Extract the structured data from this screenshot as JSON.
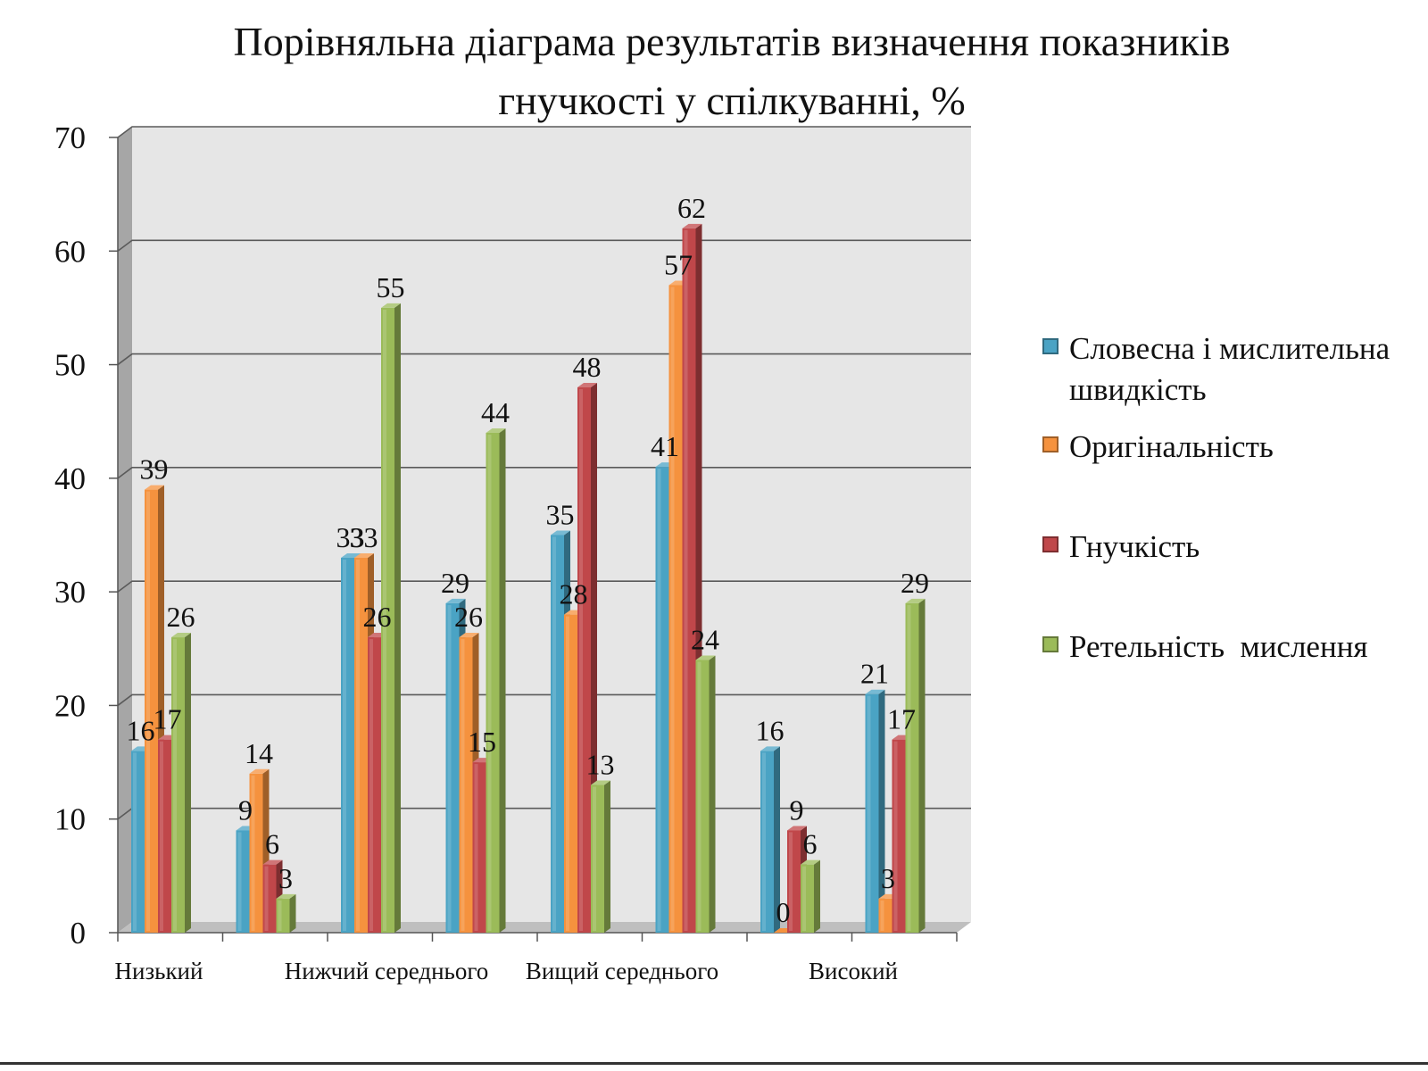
{
  "chart_data": {
    "type": "bar",
    "title": "Порівняльна діаграма результатів визначення показників\nгнучкості у спілкуванні, %",
    "xlabel": "",
    "ylabel": "",
    "ylim": [
      0,
      70
    ],
    "yticks": [
      0,
      10,
      20,
      30,
      40,
      50,
      60,
      70
    ],
    "grid": true,
    "legend_position": "right",
    "category_labels": [
      "Низький",
      "Нижчий середнього",
      "Вищий середнього",
      "Високий"
    ],
    "groups_per_category": 2,
    "series": [
      {
        "name": "Словесна і мислительна\nшвидкість",
        "color": "#4aa3c4",
        "values": [
          16,
          9,
          33,
          29,
          35,
          41,
          16,
          21
        ]
      },
      {
        "name": "Оригінальність",
        "color": "#f5923e",
        "values": [
          39,
          14,
          33,
          26,
          28,
          57,
          0,
          3
        ]
      },
      {
        "name": "Гнучкість",
        "color": "#c0474a",
        "values": [
          17,
          6,
          26,
          15,
          48,
          62,
          9,
          17
        ]
      },
      {
        "name": "Ретельність  мислення",
        "color": "#9bbb59",
        "values": [
          26,
          3,
          55,
          44,
          13,
          24,
          6,
          29
        ]
      }
    ]
  }
}
